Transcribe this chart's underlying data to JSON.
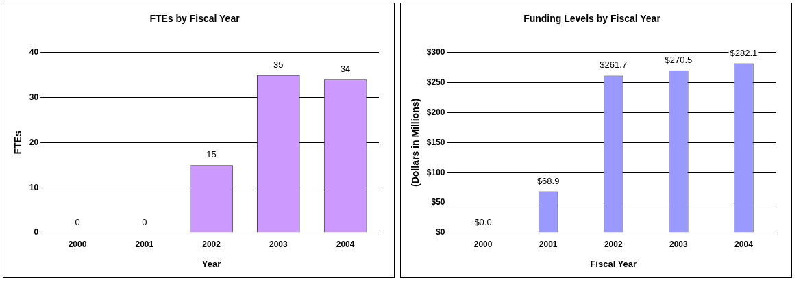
{
  "chart_data": [
    {
      "type": "bar",
      "title": "FTEs by Fiscal Year",
      "xlabel": "Year",
      "ylabel": "FTEs",
      "categories": [
        "2000",
        "2001",
        "2002",
        "2003",
        "2004"
      ],
      "values": [
        0,
        0,
        15,
        35,
        34
      ],
      "color": "#cc99ff",
      "ylim": [
        0,
        40
      ],
      "yticks": [
        0,
        10,
        20,
        30,
        40
      ],
      "grid": "y",
      "data_labels": true
    },
    {
      "type": "bar",
      "title": "Funding Levels by Fiscal Year",
      "xlabel": "Fiscal Year",
      "ylabel": "(Dollars in Millions)",
      "categories": [
        "2000",
        "2001",
        "2002",
        "2003",
        "2004"
      ],
      "values": [
        0,
        68.9,
        261.7,
        270.5,
        282.1
      ],
      "value_labels": [
        "$0.0",
        "$68.9",
        "$261.7",
        "$270.5",
        "$282.1"
      ],
      "color": "#9999ff",
      "ylim": [
        0,
        300
      ],
      "yticks": [
        {
          "value": 0,
          "label": "$0"
        },
        {
          "value": 50,
          "label": "$50"
        },
        {
          "value": 100,
          "label": "$100"
        },
        {
          "value": 150,
          "label": "$150"
        },
        {
          "value": 200,
          "label": "$200"
        },
        {
          "value": 250,
          "label": "$250"
        },
        {
          "value": 300,
          "label": "$300"
        }
      ],
      "grid": "y"
    }
  ]
}
